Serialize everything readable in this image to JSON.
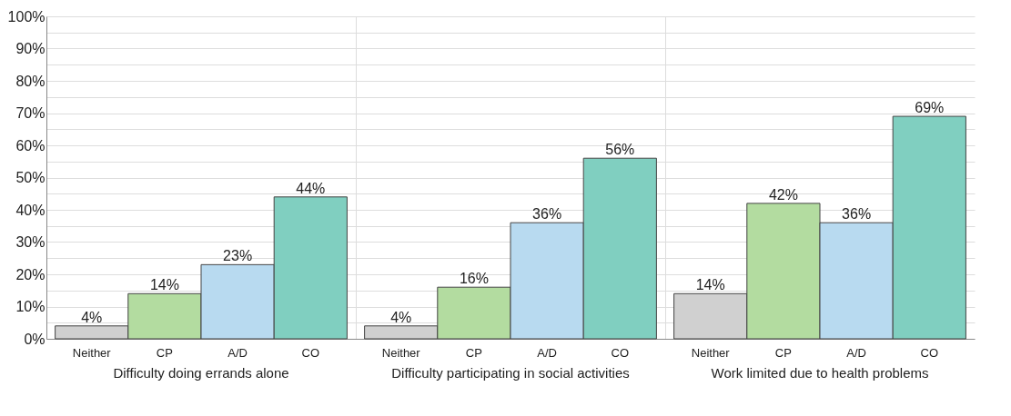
{
  "chart_data": {
    "type": "bar",
    "categories": [
      "Difficulty doing errands alone",
      "Difficulty participating in social activities",
      "Work limited due to health problems"
    ],
    "series": [
      {
        "name": "Neither",
        "color": "#d0d0d0",
        "values": [
          4,
          4,
          14
        ],
        "value_labels": [
          "4%",
          "4%",
          "14%"
        ]
      },
      {
        "name": "CP",
        "color": "#b3dca0",
        "values": [
          14,
          16,
          42
        ],
        "value_labels": [
          "14%",
          "16%",
          "42%"
        ]
      },
      {
        "name": "A/D",
        "color": "#b8daf0",
        "values": [
          23,
          36,
          36
        ],
        "value_labels": [
          "23%",
          "36%",
          "36%"
        ]
      },
      {
        "name": "CO",
        "color": "#80cfc0",
        "values": [
          44,
          56,
          69
        ],
        "value_labels": [
          "44%",
          "56%",
          "69%"
        ]
      }
    ],
    "ylim": [
      0,
      100
    ],
    "yticks": [
      {
        "value": 0,
        "label": "0%"
      },
      {
        "value": 5,
        "label": null
      },
      {
        "value": 10,
        "label": "10%"
      },
      {
        "value": 15,
        "label": null
      },
      {
        "value": 20,
        "label": "20%"
      },
      {
        "value": 25,
        "label": null
      },
      {
        "value": 30,
        "label": "30%"
      },
      {
        "value": 35,
        "label": null
      },
      {
        "value": 40,
        "label": "40%"
      },
      {
        "value": 45,
        "label": null
      },
      {
        "value": 50,
        "label": "50%"
      },
      {
        "value": 55,
        "label": null
      },
      {
        "value": 60,
        "label": "60%"
      },
      {
        "value": 65,
        "label": null
      },
      {
        "value": 70,
        "label": "70%"
      },
      {
        "value": 75,
        "label": null
      },
      {
        "value": 80,
        "label": "80%"
      },
      {
        "value": 85,
        "label": null
      },
      {
        "value": 90,
        "label": "90%"
      },
      {
        "value": 95,
        "label": null
      },
      {
        "value": 100,
        "label": "100%"
      }
    ],
    "grid": true,
    "legend": false
  }
}
